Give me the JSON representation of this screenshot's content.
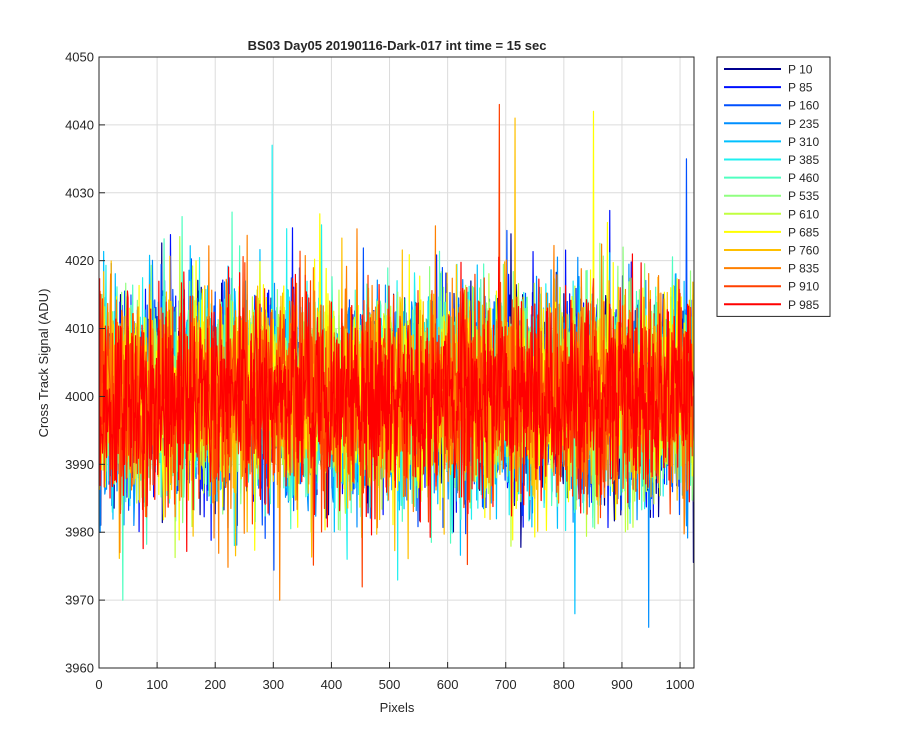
{
  "chart_data": {
    "type": "line",
    "title": "BS03 Day05 20190116-Dark-017 int time = 15 sec",
    "xlabel": "Pixels",
    "ylabel": "Cross Track Signal (ADU)",
    "xlim": [
      0,
      1024
    ],
    "ylim": [
      3960,
      4050
    ],
    "xticks": [
      0,
      100,
      200,
      300,
      400,
      500,
      600,
      700,
      800,
      900,
      1000
    ],
    "yticks": [
      3960,
      3970,
      3980,
      3990,
      4000,
      4010,
      4020,
      4030,
      4040,
      4050
    ],
    "grid": true,
    "legend_position": "outside-top-right",
    "series_summary": {
      "mean": 4000,
      "typical_std": 7.5,
      "n_points": 1024
    },
    "notable_values": [
      {
        "series": "P 910",
        "x": 688,
        "y": 4043
      },
      {
        "series": "P 685",
        "x": 850,
        "y": 4042
      },
      {
        "series": "P 760",
        "x": 715,
        "y": 4041
      },
      {
        "series": "P 385",
        "x": 297,
        "y": 4037
      },
      {
        "series": "P 160",
        "x": 1010,
        "y": 4035
      },
      {
        "series": "P 235",
        "x": 945,
        "y": 3966
      },
      {
        "series": "P 835",
        "x": 310,
        "y": 3970
      },
      {
        "series": "P 460",
        "x": 40,
        "y": 3970
      },
      {
        "series": "P 310",
        "x": 818,
        "y": 3968
      }
    ],
    "series": [
      {
        "name": "P 10",
        "color": "#00008f"
      },
      {
        "name": "P 85",
        "color": "#0010ff"
      },
      {
        "name": "P 160",
        "color": "#0050ff"
      },
      {
        "name": "P 235",
        "color": "#008fff"
      },
      {
        "name": "P 310",
        "color": "#00c0ff"
      },
      {
        "name": "P 385",
        "color": "#20f0f0"
      },
      {
        "name": "P 460",
        "color": "#50ffc0"
      },
      {
        "name": "P 535",
        "color": "#90ff80"
      },
      {
        "name": "P 610",
        "color": "#c0ff40"
      },
      {
        "name": "P 685",
        "color": "#ffff00"
      },
      {
        "name": "P 760",
        "color": "#ffc000"
      },
      {
        "name": "P 835",
        "color": "#ff8000"
      },
      {
        "name": "P 910",
        "color": "#ff4000"
      },
      {
        "name": "P 985",
        "color": "#ff0000"
      }
    ]
  }
}
